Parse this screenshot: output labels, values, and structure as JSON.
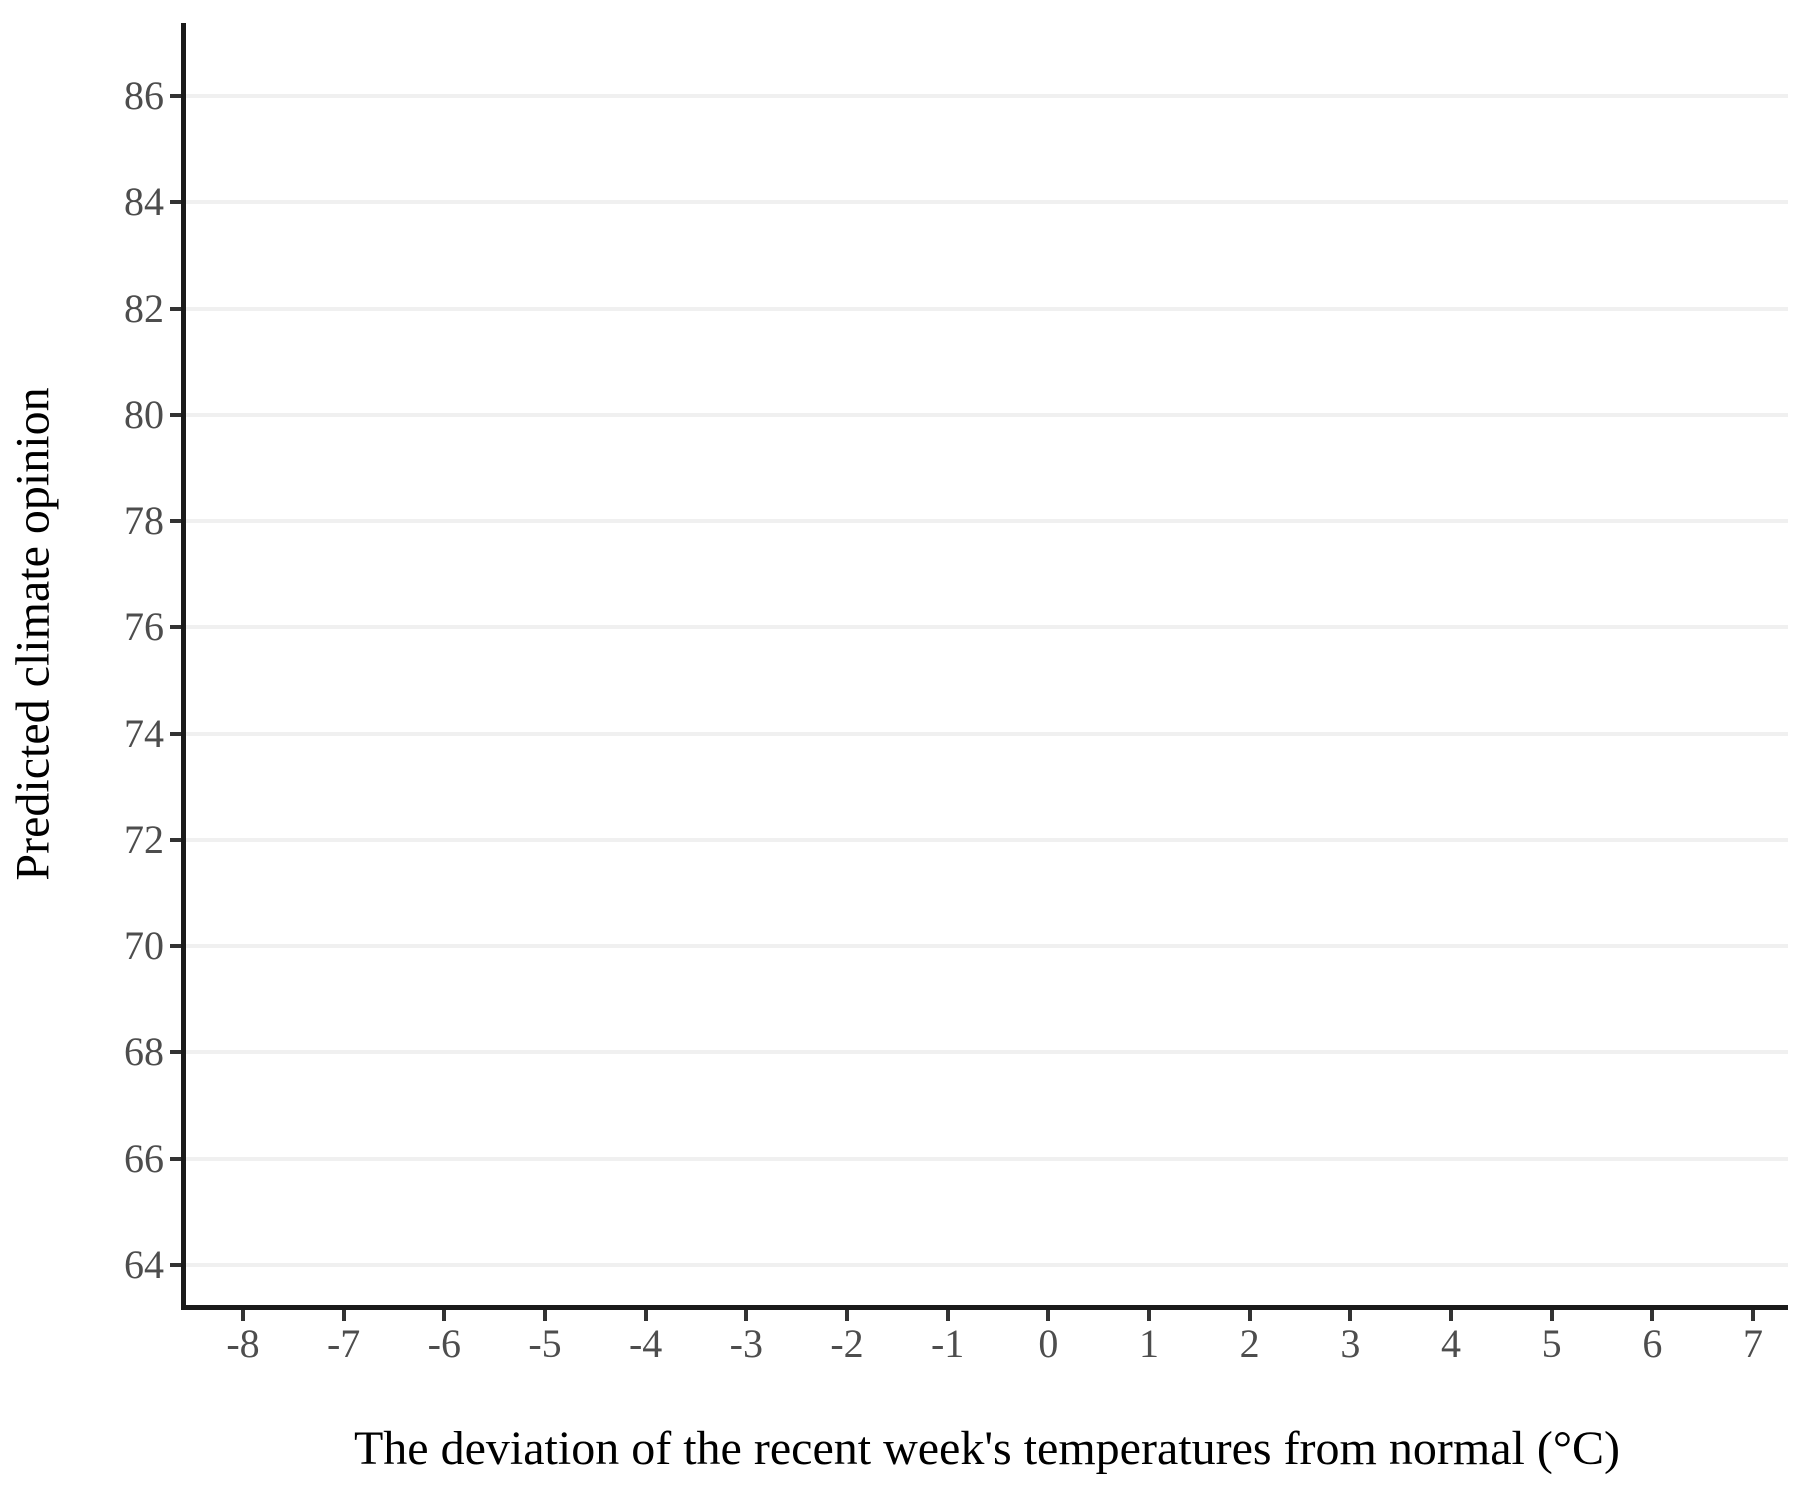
{
  "chart_data": {
    "type": "scatter",
    "title": "",
    "xlabel": "The deviation of the recent week's temperatures from normal (°C)",
    "ylabel": "Predicted climate opinion",
    "x_ticks": [
      -8,
      -7,
      -6,
      -5,
      -4,
      -3,
      -2,
      -1,
      0,
      1,
      2,
      3,
      4,
      5,
      6,
      7
    ],
    "y_ticks": [
      86,
      84,
      82,
      80,
      78,
      76,
      74,
      72,
      70,
      68,
      66,
      64
    ],
    "xlim": [
      -8.6,
      7.45
    ],
    "ylim": [
      63.2,
      87.4
    ],
    "grid": {
      "horizontal": true,
      "vertical": false
    },
    "legend": "none",
    "series": []
  },
  "colors": {
    "background": "#ffffff",
    "axis_line": "#1a1a1a",
    "tick_mark": "#333333",
    "tick_label": "#4d4d4d",
    "title_text": "#000000",
    "gridline": "#f0f0f0"
  }
}
